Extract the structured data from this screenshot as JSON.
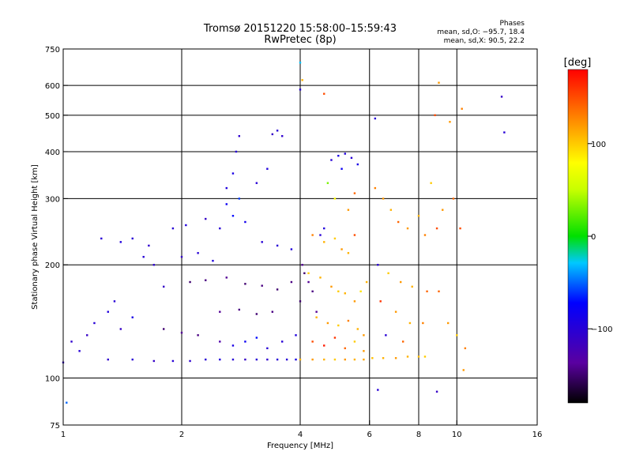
{
  "header": {
    "title_line1": "Tromsø 20151220 15:58:00–15:59:43",
    "title_line2": "RwPretec (8p)",
    "stats_title": "Phases",
    "stats_o": "mean, sd,O: −95.7, 18.4",
    "stats_x": "mean, sd,X:  90.5, 22.2"
  },
  "chart_data": {
    "type": "scatter",
    "x_scale": "log",
    "y_scale": "log",
    "xlim": [
      1,
      16
    ],
    "ylim": [
      75,
      750
    ],
    "xlabel": "Frequency [MHz]",
    "ylabel": "Stationary phase Virtual Height [km]",
    "x_ticks": [
      1,
      2,
      4,
      6,
      8,
      10,
      16
    ],
    "x_tick_labels": [
      "1",
      "2",
      "4",
      "6",
      "8",
      "10",
      "16"
    ],
    "y_ticks": [
      75,
      100,
      200,
      300,
      400,
      500,
      600,
      750
    ],
    "y_tick_labels": [
      "75",
      "100",
      "200",
      "300",
      "400",
      "500",
      "600",
      "750"
    ],
    "grid": true,
    "colorbar": {
      "label": "[deg]",
      "range": [
        -180,
        180
      ],
      "ticks": [
        100,
        0,
        -100
      ],
      "tick_labels": [
        "100",
        "0",
        "−100"
      ]
    },
    "series": [
      {
        "points": [
          [
            1.0,
            110,
            -110
          ],
          [
            1.05,
            125,
            -105
          ],
          [
            1.1,
            118,
            -100
          ],
          [
            1.15,
            130,
            -110
          ],
          [
            1.2,
            140,
            -100
          ],
          [
            1.3,
            150,
            -95
          ],
          [
            1.35,
            160,
            -100
          ],
          [
            1.4,
            135,
            -110
          ],
          [
            1.5,
            145,
            -90
          ],
          [
            1.6,
            210,
            -100
          ],
          [
            1.7,
            200,
            -105
          ],
          [
            1.8,
            175,
            -110
          ],
          [
            1.25,
            235,
            -100
          ],
          [
            1.4,
            230,
            -95
          ],
          [
            1.5,
            235,
            -100
          ],
          [
            1.65,
            225,
            -105
          ],
          [
            1.9,
            250,
            -100
          ],
          [
            2.05,
            255,
            -95
          ],
          [
            2.3,
            265,
            -110
          ],
          [
            2.5,
            250,
            -100
          ],
          [
            2.6,
            320,
            -95
          ],
          [
            2.7,
            350,
            -90
          ],
          [
            2.75,
            400,
            -100
          ],
          [
            2.8,
            440,
            -105
          ],
          [
            2.6,
            290,
            -80
          ],
          [
            2.7,
            270,
            -70
          ],
          [
            2.8,
            300,
            -60
          ],
          [
            2.9,
            260,
            -85
          ],
          [
            3.1,
            330,
            -100
          ],
          [
            3.3,
            360,
            -95
          ],
          [
            3.4,
            445,
            -110
          ],
          [
            3.5,
            455,
            -100
          ],
          [
            3.6,
            440,
            -105
          ],
          [
            3.2,
            230,
            -100
          ],
          [
            3.5,
            225,
            -100
          ],
          [
            3.8,
            220,
            -95
          ],
          [
            2.0,
            210,
            -110
          ],
          [
            2.2,
            215,
            -100
          ],
          [
            2.4,
            205,
            -95
          ],
          [
            2.1,
            180,
            -150
          ],
          [
            2.3,
            182,
            -145
          ],
          [
            2.6,
            185,
            -140
          ],
          [
            2.9,
            178,
            -150
          ],
          [
            3.2,
            176,
            -145
          ],
          [
            3.5,
            172,
            -150
          ],
          [
            3.8,
            180,
            -145
          ],
          [
            2.5,
            150,
            -140
          ],
          [
            2.8,
            152,
            -145
          ],
          [
            3.1,
            148,
            -150
          ],
          [
            3.4,
            150,
            -145
          ],
          [
            1.8,
            135,
            -150
          ],
          [
            2.0,
            132,
            -140
          ],
          [
            2.2,
            130,
            -145
          ],
          [
            2.5,
            125,
            -130
          ],
          [
            2.7,
            122,
            -90
          ],
          [
            2.9,
            125,
            -80
          ],
          [
            3.1,
            128,
            -70
          ],
          [
            3.3,
            120,
            -100
          ],
          [
            3.6,
            125,
            -100
          ],
          [
            3.9,
            130,
            -95
          ],
          [
            1.3,
            112,
            -105
          ],
          [
            1.5,
            112,
            -100
          ],
          [
            1.7,
            111,
            -110
          ],
          [
            1.9,
            111,
            -100
          ],
          [
            2.1,
            111,
            -105
          ],
          [
            2.3,
            112,
            -100
          ],
          [
            2.5,
            112,
            -95
          ],
          [
            2.7,
            112,
            -100
          ],
          [
            2.9,
            112,
            -110
          ],
          [
            3.1,
            112,
            -100
          ],
          [
            3.3,
            112,
            -105
          ],
          [
            3.5,
            112,
            -100
          ],
          [
            3.7,
            112,
            -100
          ],
          [
            3.9,
            112,
            -90
          ],
          [
            4.05,
            200,
            -140
          ],
          [
            4.1,
            190,
            -150
          ],
          [
            4.2,
            180,
            -140
          ],
          [
            4.3,
            170,
            -145
          ],
          [
            4.0,
            160,
            -150
          ],
          [
            4.4,
            150,
            -140
          ],
          [
            4.5,
            240,
            -100
          ],
          [
            4.6,
            250,
            -95
          ],
          [
            4.8,
            380,
            -100
          ],
          [
            5.0,
            390,
            -90
          ],
          [
            5.2,
            395,
            -95
          ],
          [
            5.4,
            385,
            -100
          ],
          [
            5.6,
            370,
            -90
          ],
          [
            5.1,
            360,
            -80
          ],
          [
            4.7,
            330,
            30
          ],
          [
            4.9,
            300,
            80
          ],
          [
            5.3,
            280,
            120
          ],
          [
            5.5,
            310,
            140
          ],
          [
            4.3,
            240,
            130
          ],
          [
            4.6,
            230,
            110
          ],
          [
            4.9,
            235,
            100
          ],
          [
            5.1,
            220,
            120
          ],
          [
            5.3,
            215,
            110
          ],
          [
            5.5,
            240,
            150
          ],
          [
            4.2,
            190,
            100
          ],
          [
            4.5,
            185,
            110
          ],
          [
            4.8,
            175,
            120
          ],
          [
            5.0,
            170,
            100
          ],
          [
            5.2,
            168,
            110
          ],
          [
            5.5,
            160,
            120
          ],
          [
            5.7,
            170,
            90
          ],
          [
            5.9,
            180,
            110
          ],
          [
            4.4,
            145,
            110
          ],
          [
            4.7,
            140,
            120
          ],
          [
            5.0,
            138,
            100
          ],
          [
            5.3,
            142,
            130
          ],
          [
            5.6,
            135,
            110
          ],
          [
            5.8,
            130,
            120
          ],
          [
            4.3,
            125,
            150
          ],
          [
            4.6,
            122,
            170
          ],
          [
            4.9,
            128,
            160
          ],
          [
            5.2,
            120,
            140
          ],
          [
            5.5,
            125,
            100
          ],
          [
            5.8,
            118,
            120
          ],
          [
            4.0,
            112,
            110
          ],
          [
            4.3,
            112,
            120
          ],
          [
            4.6,
            112,
            110
          ],
          [
            4.9,
            112,
            100
          ],
          [
            5.2,
            112,
            120
          ],
          [
            5.5,
            112,
            110
          ],
          [
            5.8,
            112,
            115
          ],
          [
            6.1,
            113,
            105
          ],
          [
            6.5,
            113,
            110
          ],
          [
            7.0,
            113,
            120
          ],
          [
            7.5,
            114,
            110
          ],
          [
            8.0,
            114,
            105
          ],
          [
            8.3,
            114,
            100
          ],
          [
            6.2,
            320,
            130
          ],
          [
            6.5,
            300,
            120
          ],
          [
            6.8,
            280,
            110
          ],
          [
            7.1,
            260,
            140
          ],
          [
            7.5,
            250,
            120
          ],
          [
            8.0,
            270,
            110
          ],
          [
            8.3,
            240,
            130
          ],
          [
            8.6,
            330,
            100
          ],
          [
            8.9,
            250,
            150
          ],
          [
            6.3,
            200,
            -100
          ],
          [
            6.7,
            190,
            100
          ],
          [
            7.2,
            180,
            120
          ],
          [
            7.7,
            175,
            110
          ],
          [
            8.4,
            170,
            140
          ],
          [
            6.4,
            160,
            160
          ],
          [
            7.0,
            150,
            120
          ],
          [
            7.6,
            140,
            110
          ],
          [
            8.2,
            140,
            130
          ],
          [
            6.6,
            130,
            -100
          ],
          [
            7.3,
            125,
            140
          ],
          [
            9.0,
            170,
            140
          ],
          [
            9.5,
            140,
            120
          ],
          [
            10.0,
            130,
            100
          ],
          [
            10.5,
            120,
            130
          ],
          [
            9.2,
            280,
            120
          ],
          [
            9.8,
            300,
            140
          ],
          [
            10.2,
            250,
            150
          ],
          [
            8.8,
            500,
            150
          ],
          [
            9.6,
            480,
            120
          ],
          [
            10.3,
            520,
            130
          ],
          [
            13.0,
            560,
            -110
          ],
          [
            13.2,
            450,
            -100
          ],
          [
            6.2,
            490,
            -100
          ],
          [
            6.3,
            93,
            -100
          ],
          [
            8.9,
            92,
            -110
          ],
          [
            10.4,
            105,
            120
          ],
          [
            1.02,
            86,
            -50
          ],
          [
            4.0,
            690,
            -30
          ],
          [
            4.05,
            620,
            110
          ],
          [
            4.0,
            585,
            -100
          ],
          [
            4.6,
            570,
            150
          ],
          [
            9.0,
            610,
            120
          ]
        ]
      }
    ]
  }
}
